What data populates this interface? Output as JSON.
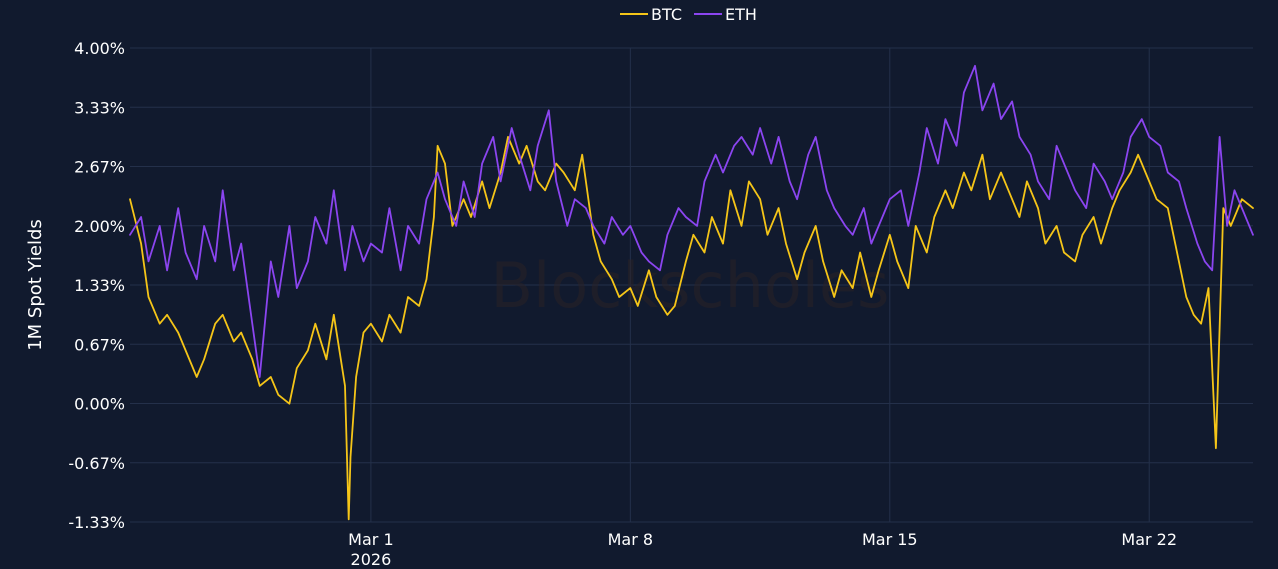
{
  "chart_data": {
    "type": "line",
    "ylabel": "1M Spot Yields",
    "watermark": "Blockscholes",
    "y_ticks": [
      "4.00%",
      "3.33%",
      "2.67%",
      "2.00%",
      "1.33%",
      "0.67%",
      "0.00%",
      "-0.67%",
      "-1.33%"
    ],
    "ylim": [
      -1.33,
      4.0
    ],
    "x_ticks": [
      {
        "label": "Mar 1",
        "sublabel": "2026",
        "day": 0
      },
      {
        "label": "Mar 8",
        "sublabel": "",
        "day": 7
      },
      {
        "label": "Mar 15",
        "sublabel": "",
        "day": 14
      },
      {
        "label": "Mar 22",
        "sublabel": "",
        "day": 21
      }
    ],
    "xlim_days": [
      -6.5,
      23.8
    ],
    "legend_position": "top-center",
    "grid": true,
    "series": [
      {
        "name": "BTC",
        "color": "#f5c518",
        "x_days": [
          -6.5,
          -6.2,
          -6.0,
          -5.7,
          -5.5,
          -5.2,
          -5.0,
          -4.7,
          -4.5,
          -4.2,
          -4.0,
          -3.7,
          -3.5,
          -3.2,
          -3.0,
          -2.7,
          -2.5,
          -2.2,
          -2.0,
          -1.7,
          -1.5,
          -1.2,
          -1.0,
          -0.7,
          -0.6,
          -0.55,
          -0.4,
          -0.2,
          0.0,
          0.3,
          0.5,
          0.8,
          1.0,
          1.3,
          1.5,
          1.7,
          1.8,
          2.0,
          2.2,
          2.5,
          2.7,
          3.0,
          3.2,
          3.5,
          3.7,
          4.0,
          4.2,
          4.5,
          4.7,
          5.0,
          5.2,
          5.5,
          5.7,
          6.0,
          6.2,
          6.5,
          6.7,
          7.0,
          7.2,
          7.5,
          7.7,
          8.0,
          8.2,
          8.5,
          8.7,
          9.0,
          9.2,
          9.5,
          9.7,
          10.0,
          10.2,
          10.5,
          10.7,
          11.0,
          11.2,
          11.5,
          11.7,
          12.0,
          12.2,
          12.5,
          12.7,
          13.0,
          13.2,
          13.5,
          13.7,
          14.0,
          14.2,
          14.5,
          14.7,
          15.0,
          15.2,
          15.5,
          15.7,
          16.0,
          16.2,
          16.5,
          16.7,
          17.0,
          17.2,
          17.5,
          17.7,
          18.0,
          18.2,
          18.5,
          18.7,
          19.0,
          19.2,
          19.5,
          19.7,
          20.0,
          20.2,
          20.5,
          20.7,
          21.0,
          21.2,
          21.5,
          21.7,
          22.0,
          22.2,
          22.4,
          22.5,
          22.6,
          22.8,
          23.0,
          23.2,
          23.5,
          23.8
        ],
        "values": [
          2.3,
          1.8,
          1.2,
          0.9,
          1.0,
          0.8,
          0.6,
          0.3,
          0.5,
          0.9,
          1.0,
          0.7,
          0.8,
          0.5,
          0.2,
          0.3,
          0.1,
          0.0,
          0.4,
          0.6,
          0.9,
          0.5,
          1.0,
          0.2,
          -1.3,
          -0.6,
          0.3,
          0.8,
          0.9,
          0.7,
          1.0,
          0.8,
          1.2,
          1.1,
          1.4,
          2.1,
          2.9,
          2.7,
          2.0,
          2.3,
          2.1,
          2.5,
          2.2,
          2.6,
          3.0,
          2.7,
          2.9,
          2.5,
          2.4,
          2.7,
          2.6,
          2.4,
          2.8,
          1.9,
          1.6,
          1.4,
          1.2,
          1.3,
          1.1,
          1.5,
          1.2,
          1.0,
          1.1,
          1.6,
          1.9,
          1.7,
          2.1,
          1.8,
          2.4,
          2.0,
          2.5,
          2.3,
          1.9,
          2.2,
          1.8,
          1.4,
          1.7,
          2.0,
          1.6,
          1.2,
          1.5,
          1.3,
          1.7,
          1.2,
          1.5,
          1.9,
          1.6,
          1.3,
          2.0,
          1.7,
          2.1,
          2.4,
          2.2,
          2.6,
          2.4,
          2.8,
          2.3,
          2.6,
          2.4,
          2.1,
          2.5,
          2.2,
          1.8,
          2.0,
          1.7,
          1.6,
          1.9,
          2.1,
          1.8,
          2.2,
          2.4,
          2.6,
          2.8,
          2.5,
          2.3,
          2.2,
          1.8,
          1.2,
          1.0,
          0.9,
          1.1,
          1.3,
          -0.5,
          2.2,
          2.0,
          2.3,
          2.2
        ]
      },
      {
        "name": "ETH",
        "color": "#8b45f0",
        "x_days": [
          -6.5,
          -6.2,
          -6.0,
          -5.7,
          -5.5,
          -5.2,
          -5.0,
          -4.7,
          -4.5,
          -4.2,
          -4.0,
          -3.7,
          -3.5,
          -3.2,
          -3.0,
          -2.7,
          -2.5,
          -2.2,
          -2.0,
          -1.7,
          -1.5,
          -1.2,
          -1.0,
          -0.7,
          -0.5,
          -0.2,
          0.0,
          0.3,
          0.5,
          0.8,
          1.0,
          1.3,
          1.5,
          1.8,
          2.0,
          2.3,
          2.5,
          2.8,
          3.0,
          3.3,
          3.5,
          3.8,
          4.0,
          4.3,
          4.5,
          4.8,
          5.0,
          5.3,
          5.5,
          5.8,
          6.0,
          6.3,
          6.5,
          6.8,
          7.0,
          7.3,
          7.5,
          7.8,
          8.0,
          8.3,
          8.5,
          8.8,
          9.0,
          9.3,
          9.5,
          9.8,
          10.0,
          10.3,
          10.5,
          10.8,
          11.0,
          11.3,
          11.5,
          11.8,
          12.0,
          12.3,
          12.5,
          12.8,
          13.0,
          13.3,
          13.5,
          13.8,
          14.0,
          14.3,
          14.5,
          14.8,
          15.0,
          15.3,
          15.5,
          15.8,
          16.0,
          16.3,
          16.5,
          16.8,
          17.0,
          17.3,
          17.5,
          17.8,
          18.0,
          18.3,
          18.5,
          18.8,
          19.0,
          19.3,
          19.5,
          19.8,
          20.0,
          20.3,
          20.5,
          20.8,
          21.0,
          21.3,
          21.5,
          21.8,
          22.0,
          22.3,
          22.5,
          22.7,
          22.9,
          23.1,
          23.3,
          23.5,
          23.8
        ],
        "values": [
          1.9,
          2.1,
          1.6,
          2.0,
          1.5,
          2.2,
          1.7,
          1.4,
          2.0,
          1.6,
          2.4,
          1.5,
          1.8,
          0.9,
          0.3,
          1.6,
          1.2,
          2.0,
          1.3,
          1.6,
          2.1,
          1.8,
          2.4,
          1.5,
          2.0,
          1.6,
          1.8,
          1.7,
          2.2,
          1.5,
          2.0,
          1.8,
          2.3,
          2.6,
          2.3,
          2.0,
          2.5,
          2.1,
          2.7,
          3.0,
          2.5,
          3.1,
          2.8,
          2.4,
          2.9,
          3.3,
          2.5,
          2.0,
          2.3,
          2.2,
          2.0,
          1.8,
          2.1,
          1.9,
          2.0,
          1.7,
          1.6,
          1.5,
          1.9,
          2.2,
          2.1,
          2.0,
          2.5,
          2.8,
          2.6,
          2.9,
          3.0,
          2.8,
          3.1,
          2.7,
          3.0,
          2.5,
          2.3,
          2.8,
          3.0,
          2.4,
          2.2,
          2.0,
          1.9,
          2.2,
          1.8,
          2.1,
          2.3,
          2.4,
          2.0,
          2.6,
          3.1,
          2.7,
          3.2,
          2.9,
          3.5,
          3.8,
          3.3,
          3.6,
          3.2,
          3.4,
          3.0,
          2.8,
          2.5,
          2.3,
          2.9,
          2.6,
          2.4,
          2.2,
          2.7,
          2.5,
          2.3,
          2.6,
          3.0,
          3.2,
          3.0,
          2.9,
          2.6,
          2.5,
          2.2,
          1.8,
          1.6,
          1.5,
          3.0,
          2.0,
          2.4,
          2.2,
          1.9
        ]
      }
    ]
  }
}
